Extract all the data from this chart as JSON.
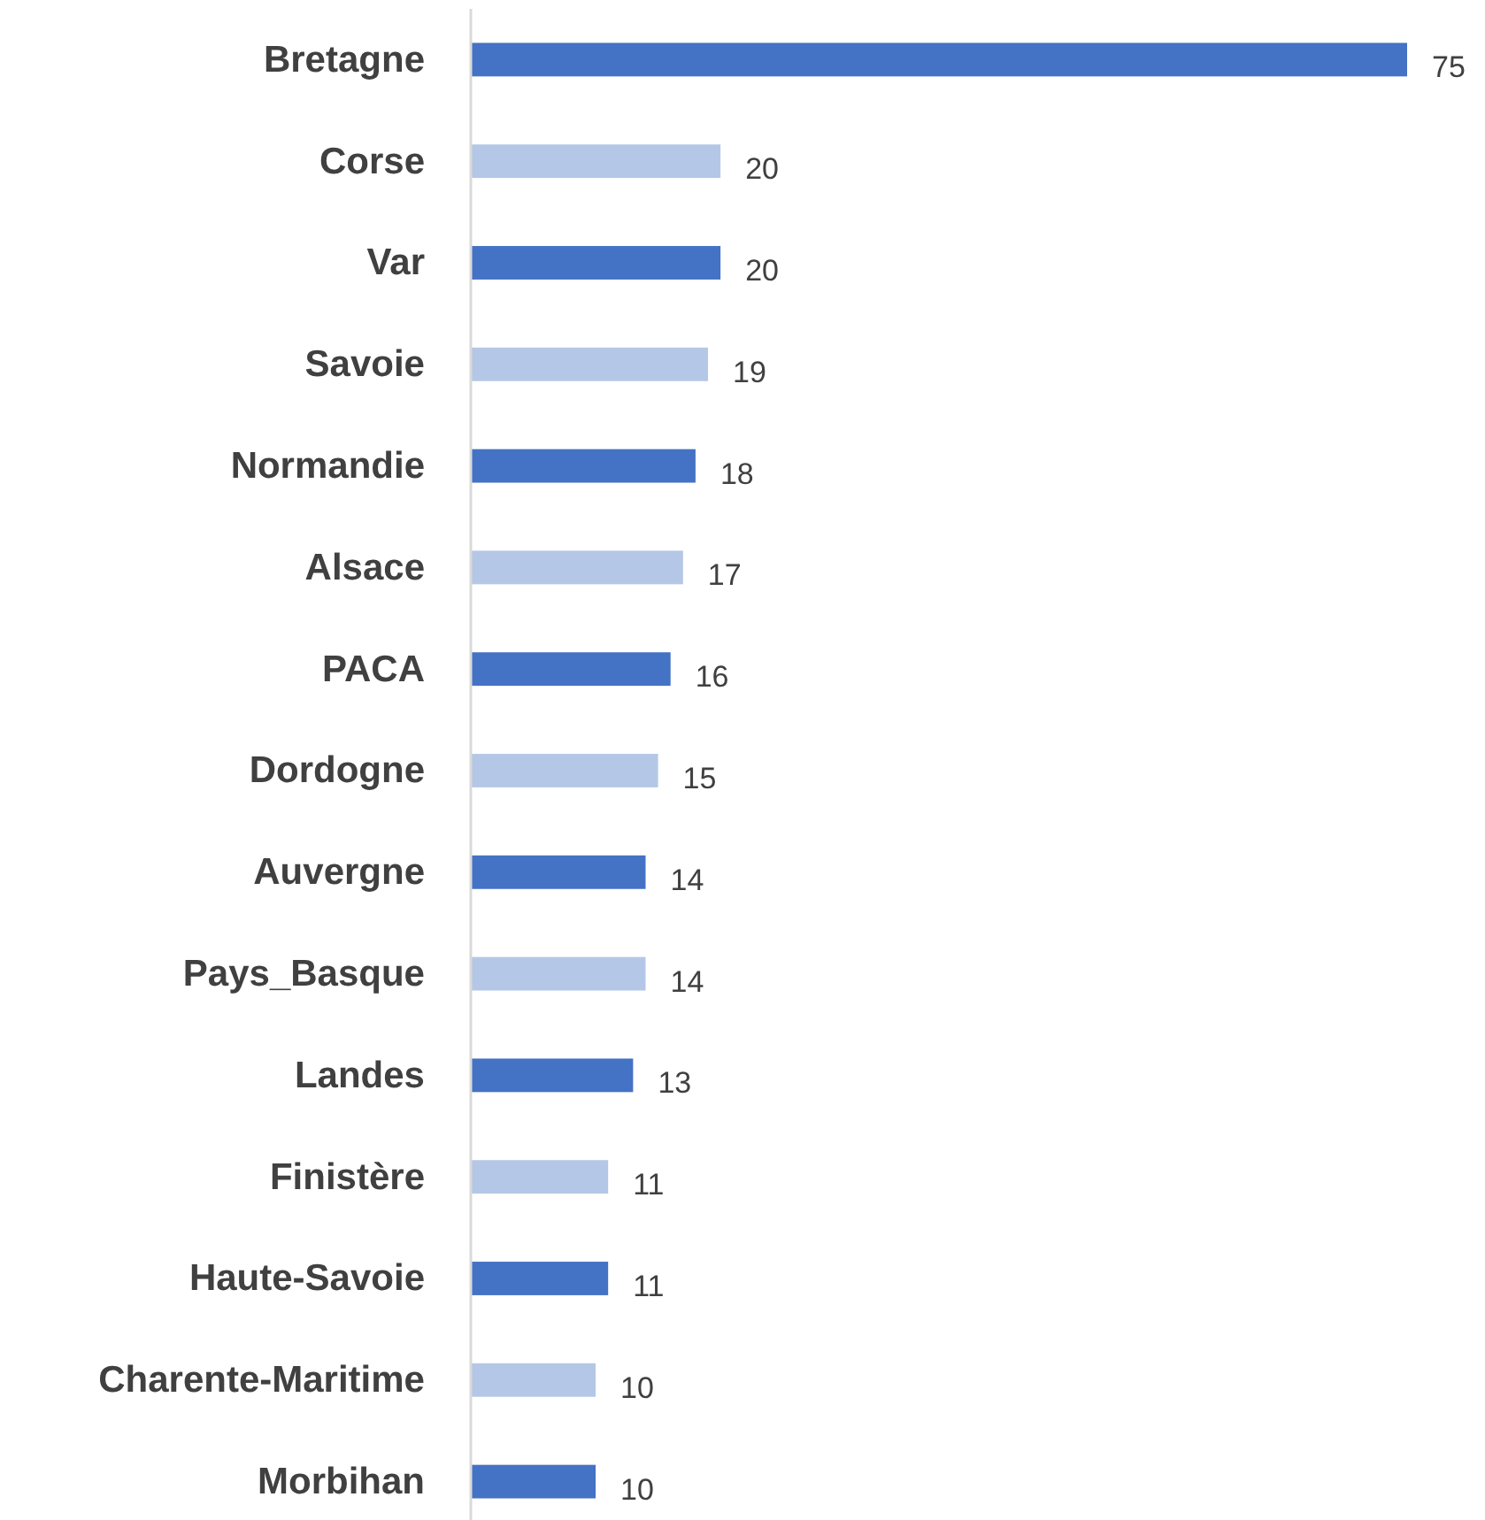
{
  "chart_data": {
    "type": "bar",
    "orientation": "horizontal",
    "categories": [
      "Bretagne",
      "Corse",
      "Var",
      "Savoie",
      "Normandie",
      "Alsace",
      "PACA",
      "Dordogne",
      "Auvergne",
      "Pays_Basque",
      "Landes",
      "Finistère",
      "Haute-Savoie",
      "Charente-Maritime",
      "Morbihan"
    ],
    "values": [
      75,
      20,
      20,
      19,
      18,
      17,
      16,
      15,
      14,
      14,
      13,
      11,
      11,
      10,
      10
    ],
    "colors": [
      "#4472c4",
      "#b4c7e7",
      "#4472c4",
      "#b4c7e7",
      "#4472c4",
      "#b4c7e7",
      "#4472c4",
      "#b4c7e7",
      "#4472c4",
      "#b4c7e7",
      "#4472c4",
      "#b4c7e7",
      "#4472c4",
      "#b4c7e7",
      "#4472c4"
    ],
    "xlim": [
      0,
      75
    ],
    "tick_labels": "y",
    "data_labels": true
  }
}
